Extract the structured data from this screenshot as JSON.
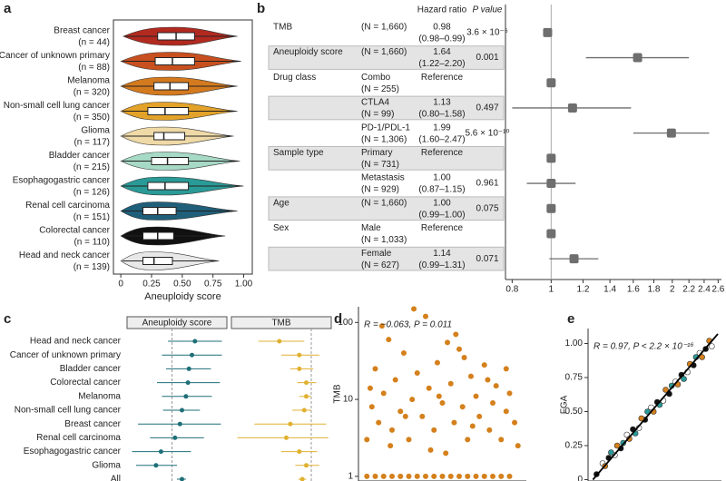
{
  "chart_data": [
    {
      "type": "violin",
      "panel": "a",
      "x_label": "Aneuploidy score",
      "categories": [
        "Breast cancer",
        "Cancer of unknown primary",
        "Melanoma",
        "Non-small cell lung cancer",
        "Glioma",
        "Bladder cancer",
        "Esophagogastric cancer",
        "Renal cell carcinoma",
        "Colorectal cancer",
        "Head and neck cancer"
      ],
      "n_labels": [
        "(n = 44)",
        "(n = 88)",
        "(n = 320)",
        "(n = 350)",
        "(n = 117)",
        "(n = 215)",
        "(n = 126)",
        "(n = 151)",
        "(n = 110)",
        "(n = 139)"
      ],
      "colors": [
        "#b22a1f",
        "#c8501f",
        "#d47a1e",
        "#e3a229",
        "#efd9a6",
        "#a6d9c6",
        "#2a9a97",
        "#1f5f7a",
        "#111111",
        "#e8e8e8"
      ],
      "min": [
        0.02,
        0,
        0,
        0,
        0,
        0,
        0,
        0,
        0,
        0
      ],
      "q1": [
        0.3,
        0.28,
        0.27,
        0.22,
        0.27,
        0.25,
        0.22,
        0.18,
        0.18,
        0.18
      ],
      "median": [
        0.45,
        0.42,
        0.4,
        0.36,
        0.35,
        0.38,
        0.36,
        0.3,
        0.3,
        0.27
      ],
      "q3": [
        0.6,
        0.6,
        0.55,
        0.55,
        0.52,
        0.55,
        0.55,
        0.45,
        0.43,
        0.42
      ],
      "max": [
        0.95,
        0.98,
        0.95,
        0.95,
        0.92,
        0.97,
        1.0,
        0.95,
        0.85,
        0.8
      ],
      "xlim": [
        -0.06,
        1.07
      ],
      "xticks": [
        0,
        0.25,
        {
          "value": 0.5,
          "label": "0.50"
        },
        0.75,
        {
          "value": 1,
          "label": "1.00"
        }
      ]
    },
    {
      "type": "forest",
      "panel": "b",
      "hr_header": "Hazard ratio",
      "p_header": "P value",
      "rows": [
        {
          "group": "TMB",
          "n_label": "(N = 1,660)",
          "hr_label": "0.98",
          "ci_label": "(0.98–0.99)",
          "p_label": "3.6 × 10⁻⁶",
          "hr": 0.98,
          "lower": 0.98,
          "upper": 0.99,
          "shaded": false
        },
        {
          "group": "Aneuploidy score",
          "n_label": "(N = 1,660)",
          "hr_label": "1.64",
          "ci_label": "(1.22–2.20)",
          "p_label": "0.001",
          "hr": 1.64,
          "lower": 1.22,
          "upper": 2.2,
          "shaded": true
        },
        {
          "group": "Drug class",
          "level": "Combo",
          "n_label": "(N = 255)",
          "hr_label": "Reference",
          "hr": 1,
          "shaded": false
        },
        {
          "level": "CTLA4",
          "n_label": "(N = 99)",
          "hr_label": "1.13",
          "ci_label": "(0.80–1.58)",
          "p_label": "0.497",
          "hr": 1.13,
          "lower": 0.8,
          "upper": 1.58,
          "shaded": true
        },
        {
          "level": "PD-1/PDL-1",
          "n_label": "(N = 1,306)",
          "hr_label": "1.99",
          "ci_label": "(1.60–2.47)",
          "p_label": "5.6 × 10⁻¹⁰",
          "hr": 1.99,
          "lower": 1.6,
          "upper": 2.47,
          "shaded": false
        },
        {
          "group": "Sample type",
          "level": "Primary",
          "n_label": "(N = 731)",
          "hr_label": "Reference",
          "hr": 1,
          "shaded": true
        },
        {
          "level": "Metastasis",
          "n_label": "(N = 929)",
          "hr_label": "1.00",
          "ci_label": "(0.87–1.15)",
          "p_label": "0.961",
          "hr": 1,
          "lower": 0.87,
          "upper": 1.15,
          "shaded": false
        },
        {
          "group": "Age",
          "n_label": "(N = 1,660)",
          "hr_label": "1.00",
          "ci_label": "(0.99–1.00)",
          "p_label": "0.075",
          "hr": 1,
          "lower": 0.99,
          "upper": 1,
          "shaded": true
        },
        {
          "group": "Sex",
          "level": "Male",
          "n_label": "(N = 1,033)",
          "hr_label": "Reference",
          "hr": 1,
          "shaded": false
        },
        {
          "level": "Female",
          "n_label": "(N = 627)",
          "hr_label": "1.14",
          "ci_label": "(0.99–1.31)",
          "p_label": "0.071",
          "hr": 1.14,
          "lower": 0.99,
          "upper": 1.31,
          "shaded": true
        }
      ],
      "log_x": true,
      "ref_line": 1,
      "color": "#6e6e6e",
      "xlim": [
        0.77,
        2.65
      ],
      "xticks": [
        0.8,
        1,
        1.2,
        1.4,
        1.6,
        1.8,
        2,
        2.2,
        2.4,
        2.6
      ]
    },
    {
      "type": "dotwhisker",
      "panel": "c",
      "categories": [
        "Head and neck cancer",
        "Cancer of unknown primary",
        "Bladder cancer",
        "Colorectal cancer",
        "Melanoma",
        "Non-small cell lung cancer",
        "Breast cancer",
        "Renal cell carcinoma",
        "Esophagogastric cancer",
        "Glioma",
        "All"
      ],
      "facets": [
        {
          "title": "Aneuploidy score",
          "color": "#1f6f78",
          "ref": 0.45,
          "xlim": [
            0,
            1
          ],
          "values": [
            0.68,
            0.65,
            0.62,
            0.61,
            0.59,
            0.55,
            0.53,
            0.48,
            0.34,
            0.29,
            0.55
          ],
          "lower": [
            0.41,
            0.35,
            0.39,
            0.3,
            0.35,
            0.36,
            0.11,
            0.23,
            0.05,
            0.09,
            0.5
          ],
          "upper": [
            0.95,
            0.95,
            0.84,
            0.93,
            0.85,
            0.73,
            0.94,
            0.77,
            0.64,
            0.5,
            0.59
          ]
        },
        {
          "title": "TMB",
          "color": "#e0b030",
          "ref": 0.8,
          "xlim": [
            0,
            1
          ],
          "values": [
            0.48,
            0.68,
            0.68,
            0.75,
            0.75,
            0.73,
            0.59,
            0.55,
            0.68,
            0.75,
            0.71
          ],
          "lower": [
            0.27,
            0.5,
            0.59,
            0.66,
            0.68,
            0.61,
            0.23,
            0.06,
            0.5,
            0.64,
            0.67
          ],
          "upper": [
            0.73,
            0.88,
            0.82,
            0.85,
            0.8,
            0.8,
            0.95,
            0.97,
            0.86,
            0.88,
            0.75
          ]
        }
      ]
    },
    {
      "type": "scatter",
      "panel": "d",
      "y_label": "TMB",
      "annotation": "R = −0.063, P = 0.011",
      "log_y": true,
      "xlim": [
        0,
        1
      ],
      "ylim": [
        0.87,
        160
      ],
      "yticks": [
        1,
        10,
        100
      ],
      "series": [
        {
          "color": "#d4801c",
          "x": [
            0.05,
            0.1,
            0.15,
            0.2,
            0.25,
            0.3,
            0.35,
            0.4,
            0.45,
            0.5,
            0.55,
            0.6,
            0.65,
            0.7,
            0.75,
            0.8,
            0.85,
            0.9,
            0.05,
            0.08,
            0.1,
            0.12,
            0.15,
            0.18,
            0.2,
            0.22,
            0.25,
            0.27,
            0.3,
            0.32,
            0.35,
            0.38,
            0.4,
            0.42,
            0.45,
            0.47,
            0.5,
            0.52,
            0.55,
            0.57,
            0.6,
            0.62,
            0.65,
            0.67,
            0.7,
            0.72,
            0.75,
            0.78,
            0.8,
            0.82,
            0.85,
            0.88,
            0.9,
            0.93,
            0.95,
            0.14,
            0.33,
            0.58,
            0.07,
            0.43,
            0.63,
            0.77,
            0.28,
            0.48,
            0.68,
            0.88,
            0.19,
            0.53
          ],
          "y": [
            1,
            1,
            1,
            1,
            1,
            1,
            1,
            1,
            1,
            1,
            1,
            1,
            1,
            1,
            1,
            1,
            1,
            1,
            3,
            8,
            25,
            5,
            12,
            60,
            4,
            18,
            7,
            40,
            3,
            10,
            22,
            6,
            120,
            14,
            4,
            30,
            9,
            2,
            16,
            5,
            45,
            8,
            3,
            20,
            11,
            6,
            28,
            4,
            9,
            15,
            3,
            7,
            12,
            5,
            2.5,
            90,
            150,
            70,
            14,
            2.2,
            35,
            18,
            6,
            11,
            4.5,
            25,
            2.5,
            55
          ]
        }
      ]
    },
    {
      "type": "scatter",
      "panel": "e",
      "y_label": "FGA",
      "annotation": "R = 0.97, P < 2.2 × 10⁻¹⁶",
      "log_y": false,
      "xlim": [
        -0.02,
        1.08
      ],
      "ylim": [
        -0.01,
        1.11
      ],
      "yticks": [
        0,
        0.25,
        {
          "value": 0.5,
          "label": "0.50"
        },
        0.75,
        {
          "value": 1,
          "label": "1.00"
        }
      ],
      "fit_line": {
        "x": [
          0.02,
          1.05
        ],
        "y": [
          0,
          1.07
        ]
      },
      "series": [
        {
          "color": "#111111",
          "x": [
            0.05,
            0.15,
            0.25,
            0.35,
            0.45,
            0.55,
            0.65,
            0.75,
            0.85,
            0.95
          ],
          "y": [
            0.04,
            0.16,
            0.23,
            0.37,
            0.44,
            0.57,
            0.63,
            0.77,
            0.84,
            0.96
          ]
        },
        {
          "color": "#ffffff",
          "x": [
            0.1,
            0.2,
            0.3,
            0.4,
            0.5,
            0.6,
            0.7,
            0.8,
            0.9,
            1.0
          ],
          "y": [
            0.12,
            0.18,
            0.33,
            0.38,
            0.53,
            0.58,
            0.72,
            0.79,
            0.93,
            0.98
          ]
        },
        {
          "color": "#d4801c",
          "x": [
            0.12,
            0.22,
            0.32,
            0.42,
            0.52,
            0.62,
            0.72,
            0.82,
            0.92,
            0.98
          ],
          "y": [
            0.1,
            0.25,
            0.3,
            0.45,
            0.5,
            0.66,
            0.7,
            0.85,
            0.9,
            1.02
          ]
        },
        {
          "color": "#2a9a97",
          "x": [
            0.17,
            0.27,
            0.37,
            0.47,
            0.57,
            0.67,
            0.77,
            0.87
          ],
          "y": [
            0.2,
            0.27,
            0.34,
            0.5,
            0.55,
            0.69,
            0.74,
            0.9
          ]
        }
      ]
    }
  ]
}
